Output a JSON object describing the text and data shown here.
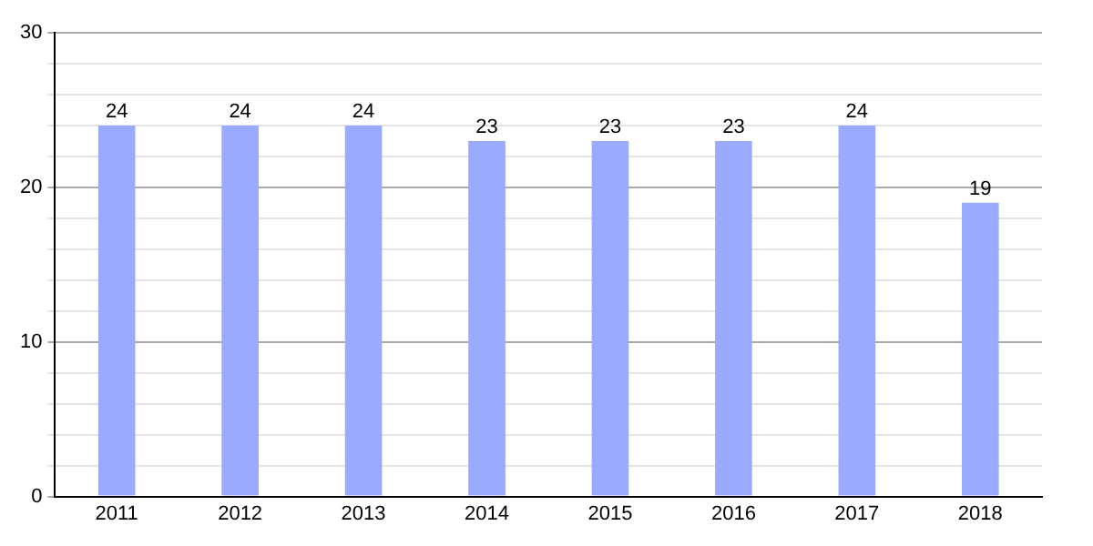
{
  "chart_data": {
    "type": "bar",
    "categories": [
      "2011",
      "2012",
      "2013",
      "2014",
      "2015",
      "2016",
      "2017",
      "2018"
    ],
    "values": [
      24,
      24,
      24,
      23,
      23,
      23,
      24,
      19
    ],
    "color": "#99aaff",
    "ylim": [
      0,
      30
    ],
    "yticks": [
      0,
      {
        "value": 2,
        "label": null
      },
      {
        "value": 4,
        "label": null
      },
      {
        "value": 6,
        "label": null
      },
      {
        "value": 8,
        "label": null
      },
      10,
      {
        "value": 12,
        "label": null
      },
      {
        "value": 14,
        "label": null
      },
      {
        "value": 16,
        "label": null
      },
      {
        "value": 18,
        "label": null
      },
      20,
      {
        "value": 22,
        "label": null
      },
      {
        "value": 24,
        "label": null
      },
      {
        "value": 26,
        "label": null
      },
      {
        "value": 28,
        "label": null
      },
      30
    ],
    "grid": "y",
    "data_labels": true,
    "legend": false
  }
}
